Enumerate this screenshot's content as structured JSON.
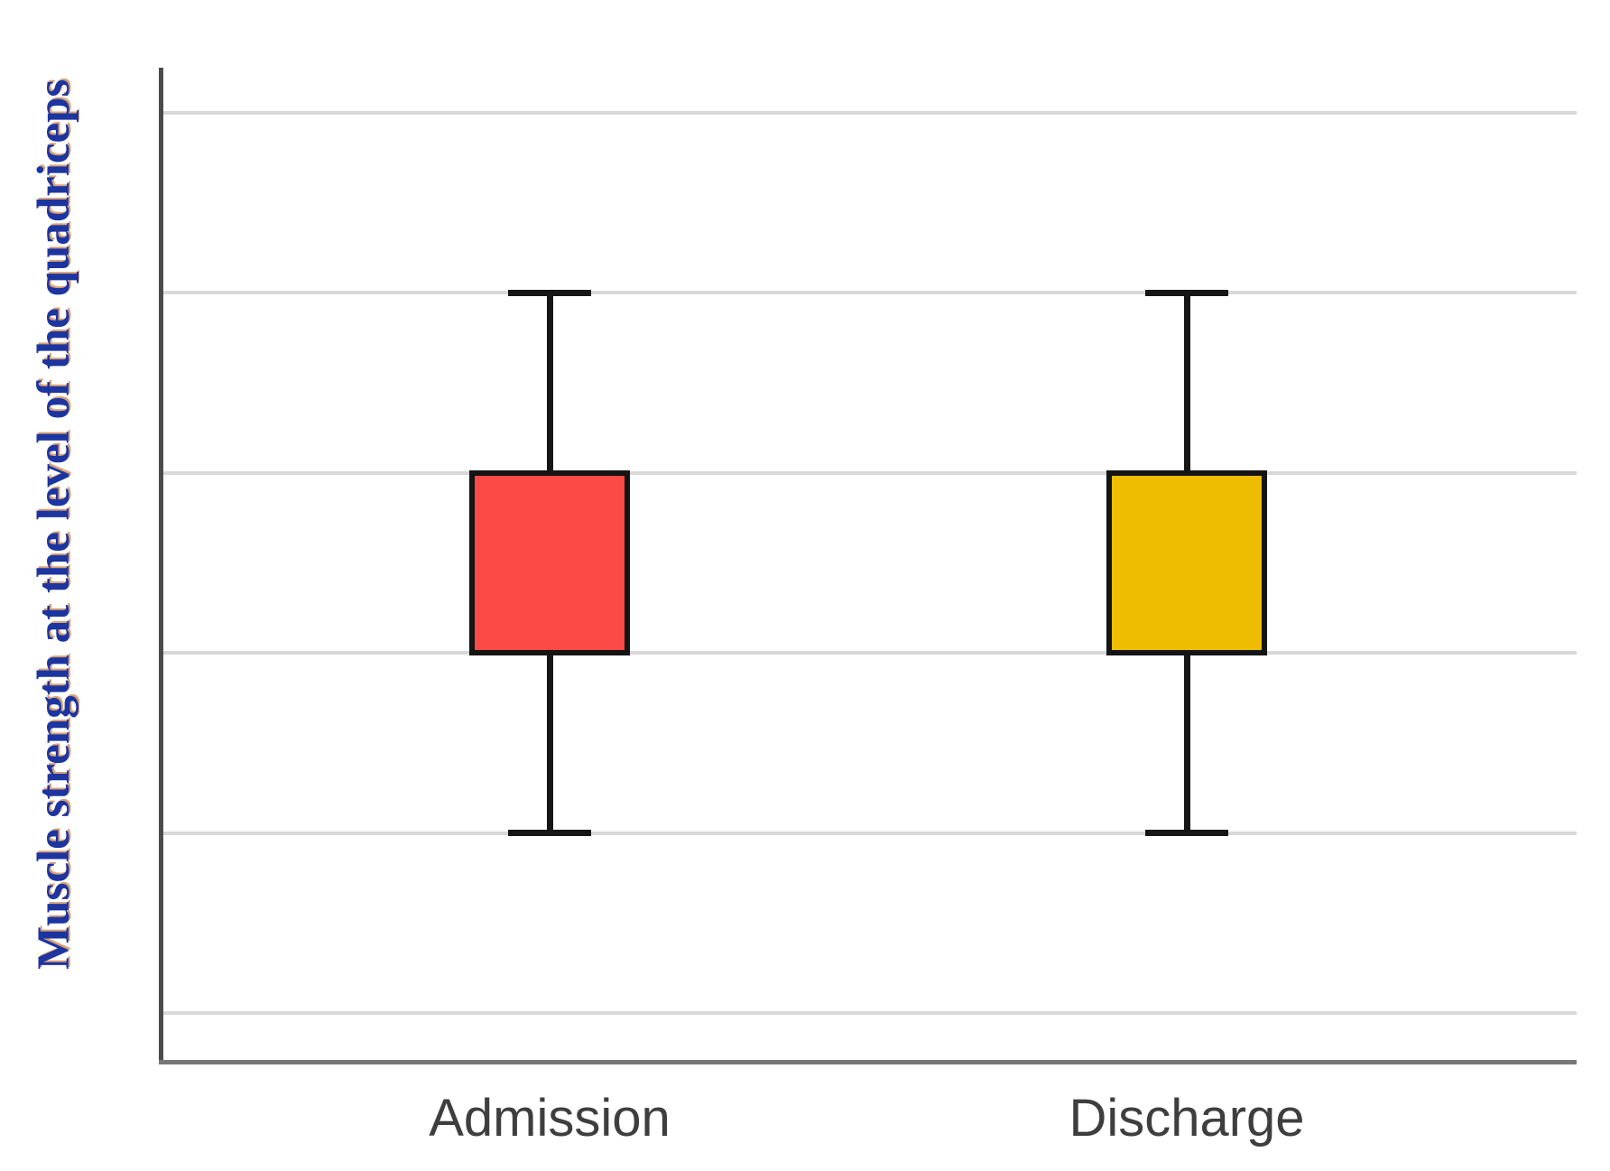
{
  "page": {
    "background": "#ffffff"
  },
  "y_axis": {
    "label": "Muscle strength at the level of the quadriceps",
    "tick_labels_shown": "none",
    "label_color": "#1c35a0"
  },
  "x_axis": {
    "categories": [
      "Admission",
      "Discharge"
    ]
  },
  "chart_data": {
    "type": "box",
    "title": "",
    "xlabel": "",
    "ylabel": "Muscle strength at the level of the quadriceps",
    "categories": [
      "Admission",
      "Discharge"
    ],
    "series": [
      {
        "name": "Admission",
        "whisker_low": 1,
        "q1": 2,
        "median": null,
        "q3": 3,
        "whisker_high": 4,
        "color": "#FC4A47"
      },
      {
        "name": "Discharge",
        "whisker_low": 1,
        "q1": 2,
        "median": null,
        "q3": 3,
        "whisker_high": 4,
        "color": "#EEBD00"
      }
    ],
    "gridlines": [
      0,
      1,
      2,
      3,
      4,
      5
    ],
    "ylim": [
      -0.28,
      5.25
    ],
    "grid": true,
    "legend": false
  },
  "colors": {
    "box_admission_fill": "#FC4A47",
    "box_discharge_fill": "#EEBD00",
    "box_border": "#141414",
    "gridline": "#d8d8d8",
    "axis_left": "#4b4b4b",
    "axis_bottom": "#777777",
    "x_label_text": "#3e3e3e"
  }
}
